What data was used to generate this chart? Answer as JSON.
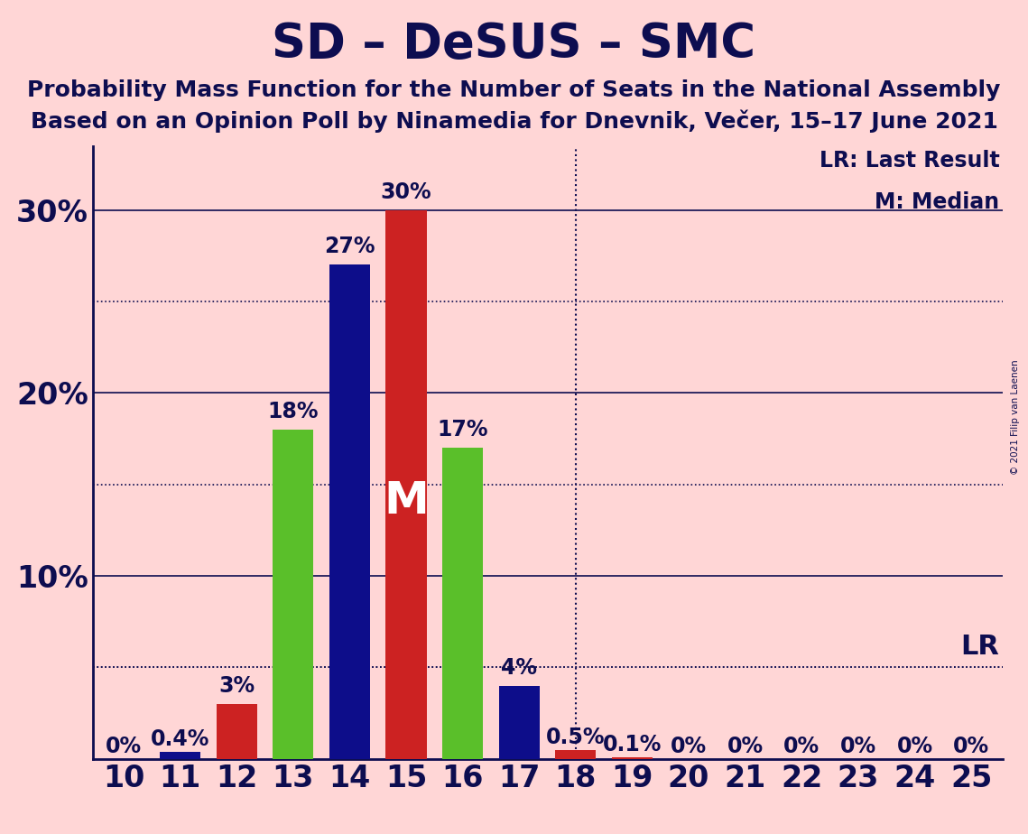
{
  "title": "SD – DeSUS – SMC",
  "subtitle1": "Probability Mass Function for the Number of Seats in the National Assembly",
  "subtitle2": "Based on an Opinion Poll by Ninamedia for Dnevnik, Večer, 15–17 June 2021",
  "copyright": "© 2021 Filip van Laenen",
  "background_color": "#ffd6d6",
  "bar_color_green": "#5abf2a",
  "bar_color_blue": "#0d0d8a",
  "bar_color_red": "#cc2222",
  "seats": [
    10,
    11,
    12,
    13,
    14,
    15,
    16,
    17,
    18,
    19,
    20,
    21,
    22,
    23,
    24,
    25
  ],
  "bar_values": [
    0.0,
    0.004,
    0.03,
    0.18,
    0.27,
    0.3,
    0.17,
    0.04,
    0.005,
    0.001,
    0.0,
    0.0,
    0.0,
    0.0,
    0.0,
    0.0
  ],
  "bar_colors_key": [
    "green",
    "blue",
    "red",
    "green",
    "blue",
    "red",
    "green",
    "blue",
    "red",
    "red",
    "red",
    "red",
    "red",
    "red",
    "red",
    "red"
  ],
  "bar_labels": [
    "0%",
    "0.4%",
    "3%",
    "18%",
    "27%",
    "30%",
    "17%",
    "4%",
    "0.5%",
    "0.1%",
    "0%",
    "0%",
    "0%",
    "0%",
    "0%",
    "0%"
  ],
  "ytick_positions": [
    0.0,
    0.1,
    0.2,
    0.3
  ],
  "ytick_labels": [
    "",
    "10%",
    "20%",
    "30%"
  ],
  "dotted_lines": [
    0.05,
    0.15,
    0.25
  ],
  "solid_lines": [
    0.1,
    0.2,
    0.3
  ],
  "title_fontsize": 38,
  "subtitle_fontsize": 18,
  "tick_label_fontsize": 24,
  "bar_label_fontsize": 17,
  "lr_seat_index": 8,
  "median_seat_index": 5,
  "lr_label": "LR: Last Result",
  "median_label": "M: Median",
  "lr_anno": "LR",
  "median_anno": "M",
  "text_color": "#0d0d50",
  "ylim_max": 0.335
}
